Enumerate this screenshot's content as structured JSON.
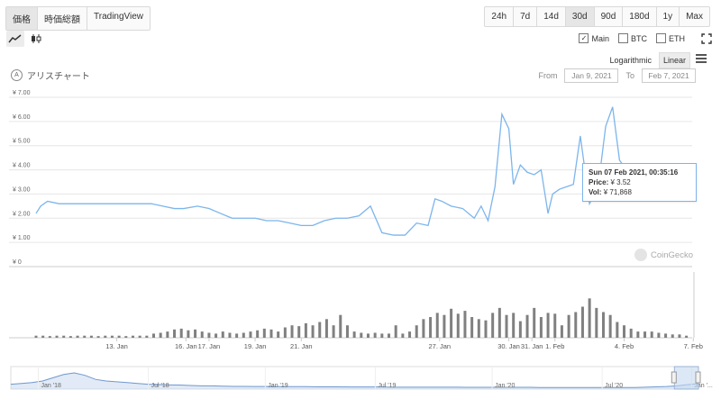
{
  "view_tabs": [
    {
      "label": "価格",
      "active": true
    },
    {
      "label": "時価総額",
      "active": false
    },
    {
      "label": "TradingView",
      "active": false
    }
  ],
  "range_tabs": [
    {
      "label": "24h"
    },
    {
      "label": "7d"
    },
    {
      "label": "14d"
    },
    {
      "label": "30d",
      "active": true
    },
    {
      "label": "90d"
    },
    {
      "label": "180d"
    },
    {
      "label": "1y"
    },
    {
      "label": "Max"
    }
  ],
  "series_toggles": [
    {
      "label": "Main",
      "checked": true,
      "check_mark": "✓"
    },
    {
      "label": "BTC",
      "checked": false
    },
    {
      "label": "ETH",
      "checked": false
    }
  ],
  "scale": {
    "log": "Logarithmic",
    "linear": "Linear"
  },
  "alert": {
    "icon": "A",
    "label": "アリスチャート"
  },
  "date_range": {
    "from_label": "From",
    "from": "Jan 9, 2021",
    "to_label": "To",
    "to": "Feb 7, 2021"
  },
  "tooltip": {
    "date": "Sun 07 Feb 2021, 00:35:16",
    "price_label": "Price:",
    "price": "¥ 3.52",
    "vol_label": "Vol:",
    "vol": "¥ 71,868"
  },
  "watermark": "CoinGecko",
  "colors": {
    "line": "#7cb5ec",
    "volume": "#808080",
    "navigator_fill": "#c3d6ee",
    "navigator_line": "#6f98cf",
    "grid": "#e6e6e6"
  },
  "chart_data": {
    "type": "line",
    "ylim": [
      0,
      7
    ],
    "y_ticks": [
      {
        "v": 0,
        "label": "¥ 0"
      },
      {
        "v": 1,
        "label": "¥ 1.00"
      },
      {
        "v": 2,
        "label": "¥ 2.00"
      },
      {
        "v": 3,
        "label": "¥ 3.00"
      },
      {
        "v": 4,
        "label": "¥ 4.00"
      },
      {
        "v": 5,
        "label": "¥ 5.00"
      },
      {
        "v": 6,
        "label": "¥ 6.00"
      },
      {
        "v": 7,
        "label": "¥ 7.00"
      }
    ],
    "x_ticks": [
      {
        "d": 3.5,
        "label": "13. Jan"
      },
      {
        "d": 6.5,
        "label": "16. Jan"
      },
      {
        "d": 7.5,
        "label": "17. Jan"
      },
      {
        "d": 9.5,
        "label": "19. Jan"
      },
      {
        "d": 11.5,
        "label": "21. Jan"
      },
      {
        "d": 17.5,
        "label": "27. Jan"
      },
      {
        "d": 20.5,
        "label": "30. Jan"
      },
      {
        "d": 21.5,
        "label": "31. Jan"
      },
      {
        "d": 22.5,
        "label": "1. Feb"
      },
      {
        "d": 25.5,
        "label": "4. Feb"
      },
      {
        "d": 28.5,
        "label": "7. Feb"
      }
    ],
    "price": {
      "name": "Main",
      "x_days": [
        0,
        0.2,
        0.5,
        1,
        2,
        3,
        4,
        4.4,
        5,
        5.5,
        6,
        6.4,
        7,
        7.5,
        8,
        8.5,
        9,
        9.5,
        10,
        10.5,
        11,
        11.5,
        12,
        12.5,
        13,
        13.5,
        14,
        14.5,
        15,
        15.5,
        16,
        16.5,
        17,
        17.3,
        17.6,
        18,
        18.5,
        19,
        19.3,
        19.6,
        19.9,
        20.2,
        20.5,
        20.7,
        21,
        21.3,
        21.6,
        21.9,
        22.2,
        22.4,
        22.7,
        23,
        23.3,
        23.6,
        24,
        24.2,
        24.4,
        24.7,
        25,
        25.3,
        25.6,
        26,
        26.4,
        26.8,
        27.2,
        27.6,
        28,
        28.4
      ],
      "values": [
        2.2,
        2.5,
        2.7,
        2.6,
        2.6,
        2.6,
        2.6,
        2.6,
        2.6,
        2.5,
        2.4,
        2.4,
        2.5,
        2.4,
        2.2,
        2.0,
        2.0,
        2.0,
        1.9,
        1.9,
        1.8,
        1.7,
        1.7,
        1.9,
        2.0,
        2.0,
        2.1,
        2.5,
        1.4,
        1.3,
        1.3,
        1.8,
        1.7,
        2.8,
        2.7,
        2.5,
        2.4,
        2.0,
        2.5,
        1.9,
        3.3,
        6.3,
        5.7,
        3.4,
        4.2,
        3.9,
        3.8,
        4.0,
        2.2,
        3.0,
        3.2,
        3.3,
        3.4,
        5.4,
        2.6,
        3.0,
        3.5,
        5.8,
        6.6,
        4.4,
        4.0,
        3.95,
        3.95,
        3.95,
        3.95,
        3.9,
        4.1,
        3.52
      ]
    },
    "volume": {
      "name": "Vol",
      "x_days": [
        0,
        0.3,
        0.6,
        0.9,
        1.2,
        1.5,
        1.8,
        2.1,
        2.4,
        2.7,
        3,
        3.3,
        3.6,
        3.9,
        4.2,
        4.5,
        4.8,
        5.1,
        5.4,
        5.7,
        6,
        6.3,
        6.6,
        6.9,
        7.2,
        7.5,
        7.8,
        8.1,
        8.4,
        8.7,
        9,
        9.3,
        9.6,
        9.9,
        10.2,
        10.5,
        10.8,
        11.1,
        11.4,
        11.7,
        12,
        12.3,
        12.6,
        12.9,
        13.2,
        13.5,
        13.8,
        14.1,
        14.4,
        14.7,
        15,
        15.3,
        15.6,
        15.9,
        16.2,
        16.5,
        16.8,
        17.1,
        17.4,
        17.7,
        18,
        18.3,
        18.6,
        18.9,
        19.2,
        19.5,
        19.8,
        20.1,
        20.4,
        20.7,
        21,
        21.3,
        21.6,
        21.9,
        22.2,
        22.5,
        22.8,
        23.1,
        23.4,
        23.7,
        24,
        24.3,
        24.6,
        24.9,
        25.2,
        25.5,
        25.8,
        26.1,
        26.4,
        26.7,
        27,
        27.3,
        27.6,
        27.9,
        28.2
      ],
      "values": [
        0.05,
        0.05,
        0.04,
        0.05,
        0.05,
        0.04,
        0.05,
        0.05,
        0.05,
        0.04,
        0.05,
        0.05,
        0.05,
        0.04,
        0.05,
        0.05,
        0.05,
        0.1,
        0.12,
        0.15,
        0.2,
        0.22,
        0.18,
        0.2,
        0.15,
        0.12,
        0.1,
        0.15,
        0.12,
        0.1,
        0.12,
        0.15,
        0.18,
        0.22,
        0.2,
        0.15,
        0.25,
        0.3,
        0.28,
        0.35,
        0.3,
        0.38,
        0.45,
        0.3,
        0.55,
        0.3,
        0.15,
        0.12,
        0.1,
        0.12,
        0.1,
        0.1,
        0.3,
        0.1,
        0.15,
        0.3,
        0.45,
        0.5,
        0.6,
        0.55,
        0.7,
        0.58,
        0.65,
        0.5,
        0.45,
        0.42,
        0.6,
        0.72,
        0.55,
        0.6,
        0.4,
        0.55,
        0.72,
        0.5,
        0.6,
        0.58,
        0.3,
        0.55,
        0.62,
        0.75,
        0.95,
        0.72,
        0.62,
        0.55,
        0.38,
        0.3,
        0.22,
        0.15,
        0.15,
        0.15,
        0.12,
        0.1,
        0.08,
        0.08,
        0.05
      ]
    },
    "navigator": {
      "x_ticks": [
        {
          "p": 0.04,
          "label": "Jan '18"
        },
        {
          "p": 0.2,
          "label": "Jul '18"
        },
        {
          "p": 0.37,
          "label": "Jan '19"
        },
        {
          "p": 0.53,
          "label": "Jul '19"
        },
        {
          "p": 0.7,
          "label": "Jan '20"
        },
        {
          "p": 0.86,
          "label": "Jul '20"
        },
        {
          "p": 0.99,
          "label": "Jan '..."
        }
      ],
      "values": [
        0.3,
        0.35,
        0.4,
        0.5,
        0.7,
        0.9,
        1.0,
        0.85,
        0.6,
        0.5,
        0.45,
        0.4,
        0.35,
        0.3,
        0.28,
        0.26,
        0.25,
        0.22,
        0.2,
        0.2,
        0.18,
        0.17,
        0.17,
        0.16,
        0.16,
        0.15,
        0.15,
        0.15,
        0.15,
        0.14,
        0.14,
        0.14,
        0.13,
        0.13,
        0.13,
        0.13,
        0.12,
        0.12,
        0.12,
        0.12,
        0.12,
        0.12,
        0.12,
        0.11,
        0.11,
        0.11,
        0.11,
        0.11,
        0.11,
        0.11,
        0.1,
        0.1,
        0.1,
        0.1,
        0.1,
        0.1,
        0.1,
        0.1,
        0.1,
        0.1,
        0.12,
        0.14,
        0.16,
        0.2,
        0.28,
        0.34
      ],
      "selection": [
        0.965,
        1.0
      ]
    }
  }
}
